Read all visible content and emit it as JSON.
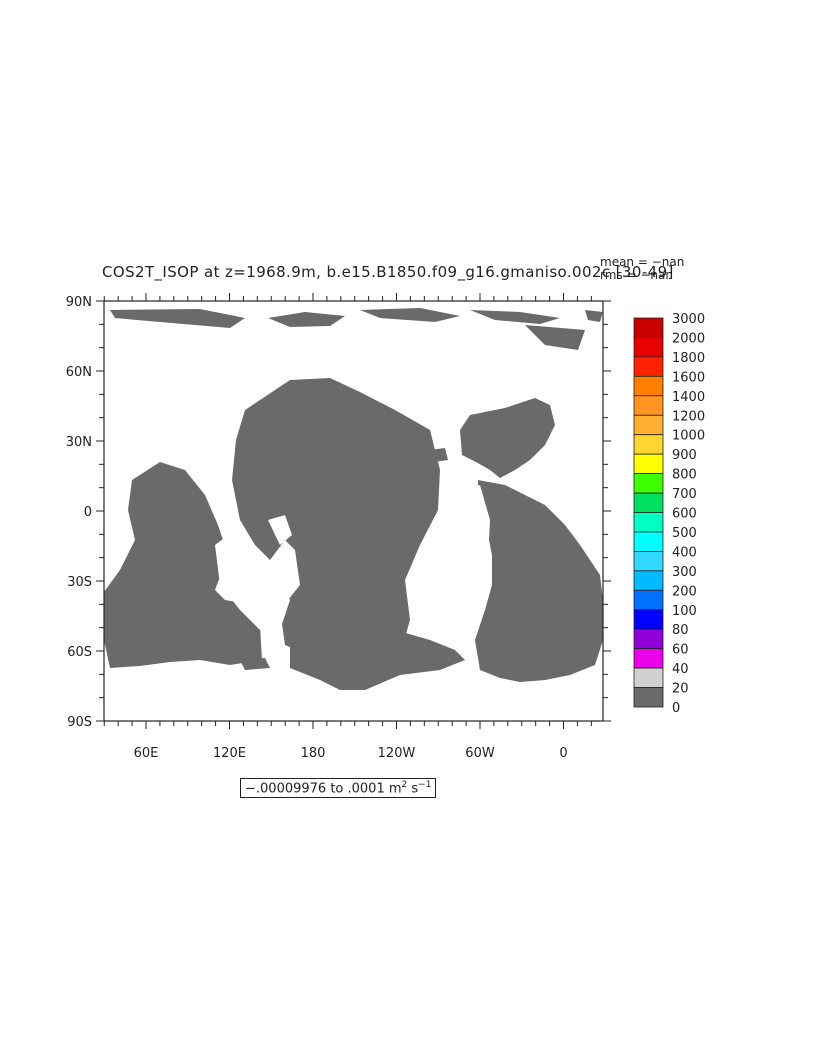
{
  "title": "COS2T_ISOP at z=1968.9m, b.e15.B1850.f09_g16.gmaniso.002c [30-49]",
  "stats": {
    "mean": "mean = −nan",
    "rms": "rms = −nan"
  },
  "lat_ticks": [
    "90N",
    "60N",
    "30N",
    "0",
    "30S",
    "60S",
    "90S"
  ],
  "lon_ticks": [
    "60E",
    "120E",
    "180",
    "120W",
    "60W",
    "0"
  ],
  "range": {
    "text": "−.00009976 to .0001 m",
    "unit_sup1": "2",
    "unit_mid": " s",
    "unit_sup2": "−1"
  },
  "colorbar": {
    "labels": [
      "3000",
      "2000",
      "1800",
      "1600",
      "1400",
      "1200",
      "1000",
      "900",
      "800",
      "700",
      "600",
      "500",
      "400",
      "300",
      "200",
      "100",
      "80",
      "60",
      "40",
      "20",
      "0"
    ],
    "colors": [
      "#c80000",
      "#e60000",
      "#ff2200",
      "#ff8000",
      "#ff9520",
      "#ffb030",
      "#ffd530",
      "#ffff00",
      "#40ff00",
      "#00e060",
      "#00ffc0",
      "#00ffff",
      "#30d8ff",
      "#00bbff",
      "#0070ff",
      "#0000ff",
      "#9000d8",
      "#e800e8",
      "#d0d0d0",
      "#6a6a6a"
    ]
  },
  "colors": {
    "land": "#6a6a6a",
    "frame": "#222222"
  }
}
